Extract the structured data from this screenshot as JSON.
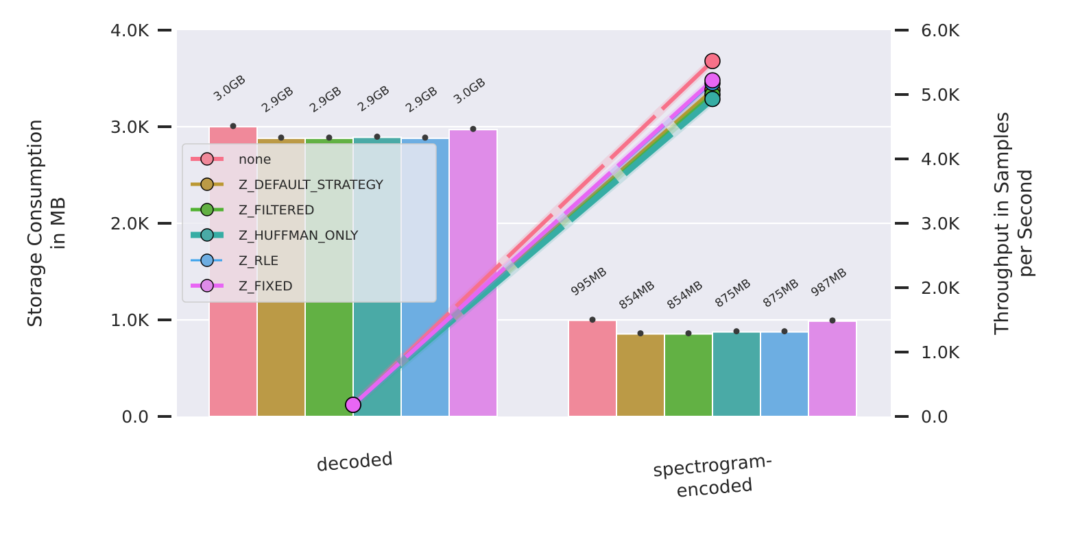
{
  "chart_data": {
    "type": "bar",
    "categories": [
      "decoded",
      "spectrogram-encoded"
    ],
    "category_label_lines": [
      [
        "decoded"
      ],
      [
        "spectrogram-",
        "encoded"
      ]
    ],
    "y_left": {
      "label_lines": [
        "Storage Consumption",
        "in MB"
      ],
      "ylim": [
        0,
        4000
      ],
      "ticks": [
        0,
        1000,
        2000,
        3000,
        4000
      ],
      "tick_labels": [
        "0.0",
        "1.0K",
        "2.0K",
        "3.0K",
        "4.0K"
      ]
    },
    "y_right": {
      "label_lines": [
        "Throughput in Samples",
        "per Second"
      ],
      "ylim": [
        0,
        6000
      ],
      "ticks": [
        0,
        1000,
        2000,
        3000,
        4000,
        5000,
        6000
      ],
      "tick_labels": [
        "0.0",
        "1.0K",
        "2.0K",
        "3.0K",
        "4.0K",
        "5.0K",
        "6.0K"
      ]
    },
    "series": [
      {
        "name": "none",
        "color": "#f0899a",
        "line_color": "#f77189",
        "storage": [
          3000,
          995
        ],
        "labels": [
          "3.0GB",
          "995MB"
        ],
        "throughput": [
          180,
          5520
        ],
        "line_width": 6
      },
      {
        "name": "Z_DEFAULT_STRATEGY",
        "color": "#bb9a46",
        "line_color": "#bb9832",
        "storage": [
          2880,
          854
        ],
        "labels": [
          "2.9GB",
          "854MB"
        ],
        "throughput": [
          180,
          5070
        ],
        "line_width": 5
      },
      {
        "name": "Z_FILTERED",
        "color": "#62b144",
        "line_color": "#50b131",
        "storage": [
          2880,
          854
        ],
        "labels": [
          "2.9GB",
          "854MB"
        ],
        "throughput": [
          180,
          5000
        ],
        "line_width": 5
      },
      {
        "name": "Z_HUFFMAN_ONLY",
        "color": "#4aaaa6",
        "line_color": "#36ada4",
        "storage": [
          2890,
          875
        ],
        "labels": [
          "2.9GB",
          "875MB"
        ],
        "throughput": [
          180,
          4930
        ],
        "line_width": 9
      },
      {
        "name": "Z_RLE",
        "color": "#6daee2",
        "line_color": "#3ba3ec",
        "storage": [
          2880,
          875
        ],
        "labels": [
          "2.9GB",
          "875MB"
        ],
        "throughput": [
          180,
          5180
        ],
        "line_width": 3
      },
      {
        "name": "Z_FIXED",
        "color": "#df8ce8",
        "line_color": "#e866f4",
        "storage": [
          2970,
          987
        ],
        "labels": [
          "3.0GB",
          "987MB"
        ],
        "throughput": [
          180,
          5220
        ],
        "line_width": 6
      }
    ],
    "grid": true,
    "legend_position": "upper-left"
  }
}
